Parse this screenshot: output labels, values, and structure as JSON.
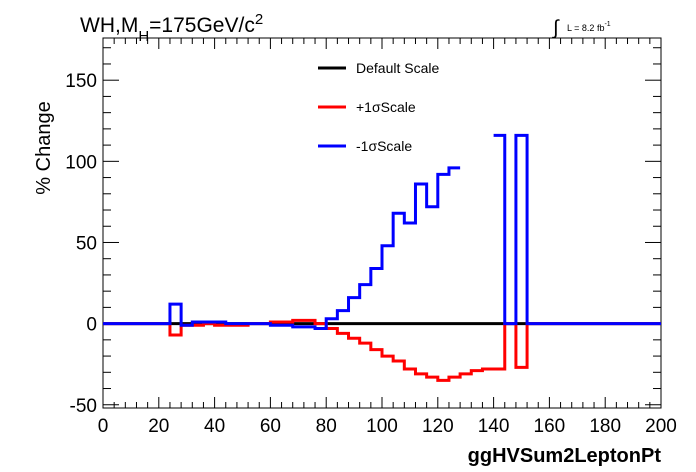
{
  "chart_data": {
    "type": "line",
    "title": "WH,M_H=175GeV/c^2",
    "title_parts": {
      "main": "WH,M",
      "sub": "H",
      "rest": "=175GeV/c",
      "sup": "2"
    },
    "lumi_label": "L = 8.2 fb",
    "lumi_sup": "-1",
    "xlabel": "ggHVSum2LeptonPt",
    "ylabel": "% Change",
    "xlim": [
      0,
      200
    ],
    "ylim": [
      -52,
      176
    ],
    "x_ticks": [
      "0",
      "20",
      "40",
      "60",
      "80",
      "100",
      "120",
      "140",
      "160",
      "180",
      "200"
    ],
    "y_ticks": [
      "-50",
      "0",
      "50",
      "100",
      "150"
    ],
    "legend_placement": "top-center",
    "bin_edges": [
      0,
      4,
      8,
      12,
      16,
      20,
      24,
      28,
      32,
      36,
      40,
      44,
      48,
      52,
      56,
      60,
      64,
      68,
      72,
      76,
      80,
      84,
      88,
      92,
      96,
      100,
      104,
      108,
      112,
      116,
      120,
      124,
      128,
      132,
      136,
      140,
      144,
      148,
      152,
      156,
      160,
      164,
      168,
      172,
      176,
      180,
      184,
      188,
      192,
      196,
      200
    ],
    "series": [
      {
        "name": "Default Scale",
        "color": "#000000",
        "values": [
          0,
          0,
          0,
          0,
          0,
          0,
          0,
          0,
          0,
          0,
          0,
          0,
          0,
          0,
          0,
          0,
          0,
          0,
          0,
          0,
          0,
          0,
          0,
          0,
          0,
          0,
          0,
          0,
          0,
          0,
          0,
          0,
          0,
          0,
          0,
          0,
          0,
          0,
          0,
          0,
          0,
          0,
          0,
          0,
          0,
          0,
          0,
          0,
          0,
          0
        ]
      },
      {
        "name": "+1σScale",
        "color": "#ff0000",
        "values": [
          0,
          0,
          0,
          0,
          0,
          0,
          -7,
          -1,
          -1,
          0,
          -1,
          -1,
          -1,
          0,
          0,
          1,
          1,
          2,
          2,
          0,
          -3,
          -6,
          -9,
          -12,
          -16,
          -20,
          -23,
          -28,
          -31,
          -33,
          -35,
          -33,
          -31,
          -29,
          -28,
          -28,
          0,
          -27,
          0,
          0,
          0,
          0,
          0,
          0,
          0,
          0,
          0,
          0,
          0,
          0
        ]
      },
      {
        "name": "-1σScale",
        "color": "#0000ff",
        "values": [
          0,
          0,
          0,
          0,
          0,
          0,
          12,
          -1,
          1,
          1,
          1,
          0,
          0,
          0,
          0,
          -1,
          -1,
          -2,
          -2,
          -3,
          3,
          8,
          16,
          24,
          34,
          48,
          68,
          62,
          86,
          72,
          92,
          96,
          null,
          null,
          null,
          116,
          0,
          116,
          0,
          0,
          0,
          0,
          0,
          0,
          0,
          0,
          0,
          0,
          0,
          0
        ]
      }
    ]
  }
}
